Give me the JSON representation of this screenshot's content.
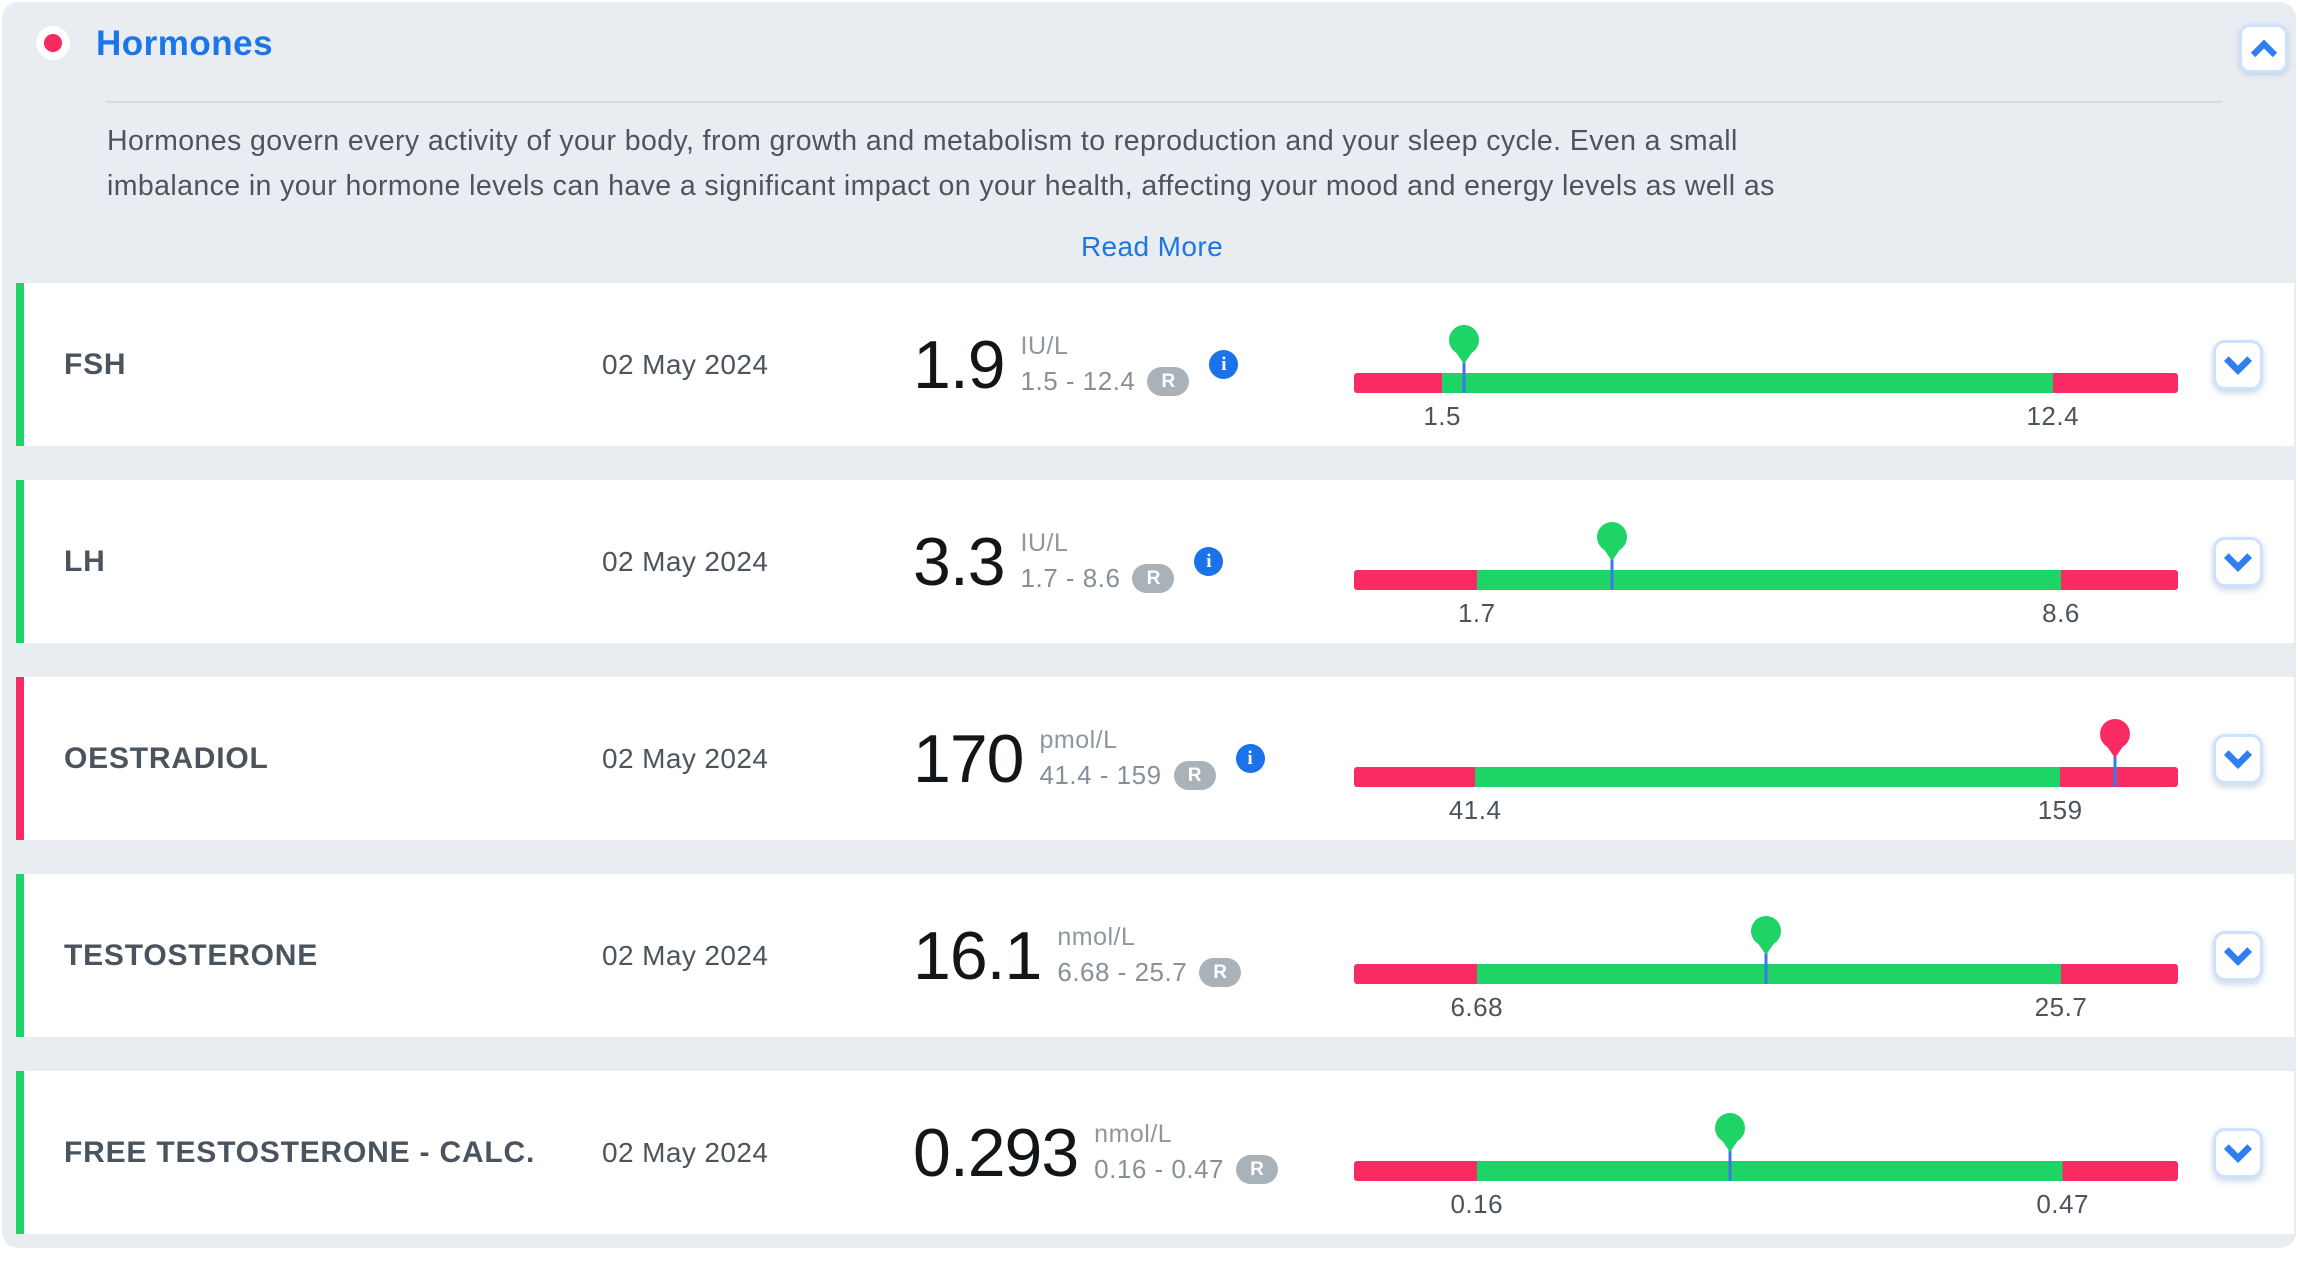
{
  "header": {
    "title": "Hormones",
    "collapse_icon": "chevron-up-icon"
  },
  "description": {
    "line1": "Hormones govern every activity of your body, from growth and metabolism to reproduction and your sleep cycle. Even a small",
    "line2": "imbalance in your hormone levels can have a significant impact on your health, affecting your mood and energy levels as well as",
    "read_more_label": "Read More"
  },
  "colors": {
    "accent_blue": "#1b76e8",
    "in_range_green": "#1fd467",
    "out_of_range_pink": "#fa2b62",
    "marker_line_blue": "#3d78e8",
    "panel_background": "#e9edf1",
    "ref_badge_gray": "#a9b2b8"
  },
  "rows": [
    {
      "name": "FSH",
      "date": "02 May 2024",
      "value": "1.9",
      "unit": "IU/L",
      "range": "1.5 - 12.4",
      "ref_badge": "R",
      "has_info": true,
      "status": "normal",
      "bar": {
        "min": 1.5,
        "max": 12.4,
        "min_label": "1.5",
        "max_label": "12.4",
        "low_pct": 10.7,
        "high_pct": 84.8,
        "marker_pct": 13.4
      }
    },
    {
      "name": "LH",
      "date": "02 May 2024",
      "value": "3.3",
      "unit": "IU/L",
      "range": "1.7 - 8.6",
      "ref_badge": "R",
      "has_info": true,
      "status": "normal",
      "bar": {
        "min": 1.7,
        "max": 8.6,
        "min_label": "1.7",
        "max_label": "8.6",
        "low_pct": 14.9,
        "high_pct": 85.8,
        "marker_pct": 31.3
      }
    },
    {
      "name": "OESTRADIOL",
      "date": "02 May 2024",
      "value": "170",
      "unit": "pmol/L",
      "range": "41.4 - 159",
      "ref_badge": "R",
      "has_info": true,
      "status": "high",
      "bar": {
        "min": 41.4,
        "max": 159,
        "min_label": "41.4",
        "max_label": "159",
        "low_pct": 14.7,
        "high_pct": 85.7,
        "marker_pct": 92.3
      }
    },
    {
      "name": "TESTOSTERONE",
      "date": "02 May 2024",
      "value": "16.1",
      "unit": "nmol/L",
      "range": "6.68 - 25.7",
      "ref_badge": "R",
      "has_info": false,
      "status": "normal",
      "bar": {
        "min": 6.68,
        "max": 25.7,
        "min_label": "6.68",
        "max_label": "25.7",
        "low_pct": 14.9,
        "high_pct": 85.8,
        "marker_pct": 50.0
      }
    },
    {
      "name": "FREE TESTOSTERONE - CALC.",
      "date": "02 May 2024",
      "value": "0.293",
      "unit": "nmol/L",
      "range": "0.16 - 0.47",
      "ref_badge": "R",
      "has_info": false,
      "status": "normal",
      "bar": {
        "min": 0.16,
        "max": 0.47,
        "min_label": "0.16",
        "max_label": "0.47",
        "low_pct": 14.9,
        "high_pct": 86.0,
        "marker_pct": 45.6
      }
    }
  ]
}
